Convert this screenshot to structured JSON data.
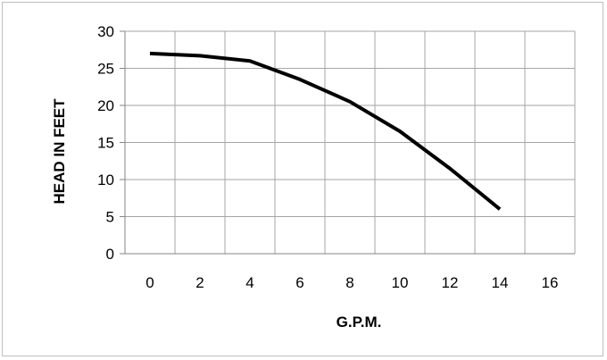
{
  "chart_data": {
    "type": "line",
    "xlabel": "G.P.M.",
    "ylabel": "HEAD IN FEET",
    "x_ticks": [
      "0",
      "2",
      "4",
      "6",
      "8",
      "10",
      "12",
      "14",
      "16"
    ],
    "y_ticks": [
      "0",
      "5",
      "10",
      "15",
      "20",
      "25",
      "30"
    ],
    "xlim": [
      -1,
      17
    ],
    "ylim": [
      0,
      30
    ],
    "grid": "vertical and horizontal",
    "legend": "none",
    "line_color": "#000000",
    "series": [
      {
        "x": [
          0,
          2,
          4,
          6,
          8,
          10,
          12,
          14
        ],
        "y": [
          27,
          26.7,
          26,
          23.5,
          20.5,
          16.5,
          11.5,
          6
        ]
      }
    ]
  }
}
